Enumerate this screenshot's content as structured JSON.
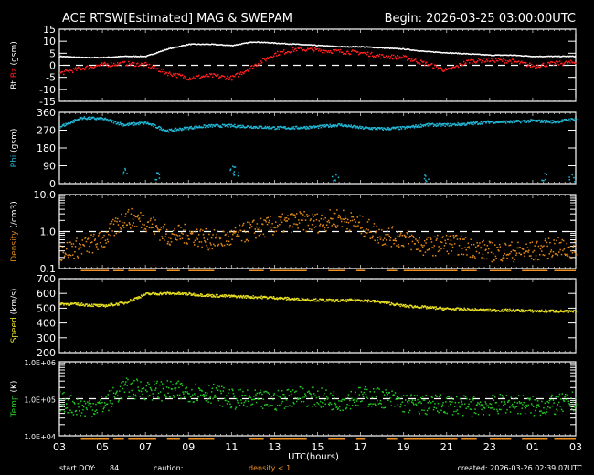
{
  "header": {
    "title": "ACE RTSW[Estimated] MAG & SWEPAM",
    "begin": "Begin: 2026-03-25 03:00:00UTC"
  },
  "footer": {
    "start_doy_label": "start DOY:",
    "start_doy": "84",
    "caution_label": "caution:",
    "caution_text": "density < 1",
    "created": "created: 2026-03-26 02:39:07UTC"
  },
  "colors": {
    "background": "#000000",
    "axis": "#ffffff",
    "bt": "#ffffff",
    "bz": "#ff2020",
    "phi": "#22b8d8",
    "density": "#e08818",
    "speed": "#e8e020",
    "temp": "#22c822",
    "caution": "#f09020"
  },
  "chart_data": [
    {
      "type": "line",
      "panel": "mag",
      "title": "ACE RTSW[Estimated] MAG & SWEPAM",
      "ylabel": "Bt Bz (gsm)",
      "ylim": [
        -15,
        15
      ],
      "yticks": [
        15,
        10,
        5,
        0,
        -5,
        -10,
        -15
      ],
      "reference_line": 0,
      "x_hours_from_start": [
        0,
        1,
        2,
        3,
        4,
        5,
        6,
        7,
        8,
        9,
        10,
        11,
        12,
        13,
        14,
        15,
        16,
        17,
        18,
        19,
        20,
        21,
        22,
        23,
        24
      ],
      "series": [
        {
          "name": "Bt",
          "color": "#ffffff",
          "values": [
            4,
            3.5,
            3.5,
            4,
            4,
            7,
            9,
            9,
            8.5,
            10,
            9.5,
            9,
            8.5,
            8,
            8,
            7.5,
            7,
            6,
            5.5,
            5,
            4.5,
            4.5,
            4,
            4,
            4
          ]
        },
        {
          "name": "Bz",
          "color": "#ff2020",
          "values": [
            -3,
            -1,
            0.5,
            1,
            0.5,
            -3,
            -5,
            -4,
            -5,
            0,
            5,
            7,
            6.5,
            6,
            5.5,
            4,
            3.5,
            1,
            -2,
            2,
            2.5,
            2,
            0,
            1,
            1.5
          ]
        }
      ]
    },
    {
      "type": "scatter",
      "panel": "phi",
      "ylabel": "Phi (gsm)",
      "ylim": [
        0,
        360
      ],
      "yticks": [
        360,
        270,
        180,
        90,
        0
      ],
      "x_hours_from_start": [
        0,
        1,
        2,
        3,
        4,
        5,
        6,
        7,
        8,
        9,
        10,
        11,
        12,
        13,
        14,
        15,
        16,
        17,
        18,
        19,
        20,
        21,
        22,
        23,
        24
      ],
      "series": [
        {
          "name": "Phi",
          "color": "#22b8d8",
          "values": [
            290,
            335,
            330,
            300,
            310,
            270,
            285,
            295,
            295,
            290,
            285,
            285,
            290,
            300,
            285,
            280,
            285,
            300,
            300,
            305,
            315,
            315,
            320,
            315,
            330
          ]
        }
      ]
    },
    {
      "type": "scatter",
      "panel": "density",
      "ylabel": "Density (/cm3)",
      "yscale": "log",
      "ylim": [
        0.1,
        10.0
      ],
      "yticks": [
        "10.0",
        "1.0",
        "0.1"
      ],
      "reference_line": 1.0,
      "x_hours_from_start": [
        0,
        1,
        2,
        3,
        4,
        5,
        6,
        7,
        8,
        9,
        10,
        11,
        12,
        13,
        14,
        15,
        16,
        17,
        18,
        19,
        20,
        21,
        22,
        23,
        24
      ],
      "series": [
        {
          "name": "Density",
          "color": "#e08818",
          "values": [
            0.3,
            0.4,
            0.6,
            2.5,
            2.0,
            0.8,
            0.9,
            0.6,
            0.7,
            1.2,
            1.5,
            2.0,
            1.8,
            2.5,
            1.5,
            0.8,
            0.7,
            0.4,
            0.5,
            0.4,
            0.3,
            0.3,
            0.3,
            0.4,
            0.3
          ]
        }
      ]
    },
    {
      "type": "scatter",
      "panel": "speed",
      "ylabel": "Speed (km/s)",
      "ylim": [
        200,
        700
      ],
      "yticks": [
        700,
        600,
        500,
        400,
        300,
        200
      ],
      "x_hours_from_start": [
        0,
        1,
        2,
        3,
        4,
        5,
        6,
        7,
        8,
        9,
        10,
        11,
        12,
        13,
        14,
        15,
        16,
        17,
        18,
        19,
        20,
        21,
        22,
        23,
        24
      ],
      "series": [
        {
          "name": "Speed",
          "color": "#e8e020",
          "values": [
            535,
            530,
            520,
            540,
            600,
            605,
            600,
            590,
            585,
            580,
            575,
            565,
            560,
            555,
            560,
            545,
            520,
            510,
            500,
            495,
            490,
            490,
            485,
            485,
            480
          ]
        }
      ]
    },
    {
      "type": "scatter",
      "panel": "temp",
      "ylabel": "Temp (K)",
      "yscale": "log",
      "ylim": [
        "1.0E+04",
        "1.0E+06"
      ],
      "yticks": [
        "1.0E+06",
        "1.0E+05",
        "1.0E+04"
      ],
      "reference_line": "1.0E+05",
      "x_hours_from_start": [
        0,
        1,
        2,
        3,
        4,
        5,
        6,
        7,
        8,
        9,
        10,
        11,
        12,
        13,
        14,
        15,
        16,
        17,
        18,
        19,
        20,
        21,
        22,
        23,
        24
      ],
      "series": [
        {
          "name": "Temp",
          "color": "#22c822",
          "values": [
            90000,
            60000,
            70000,
            200000,
            180000,
            170000,
            160000,
            150000,
            100000,
            95000,
            90000,
            130000,
            110000,
            90000,
            120000,
            110000,
            80000,
            70000,
            75000,
            65000,
            70000,
            80000,
            65000,
            70000,
            90000
          ]
        }
      ]
    },
    {
      "type": "axis",
      "xlabel": "UTC(hours)",
      "xticks": [
        "03",
        "05",
        "07",
        "09",
        "11",
        "13",
        "15",
        "17",
        "19",
        "21",
        "23",
        "01",
        "03"
      ]
    }
  ]
}
